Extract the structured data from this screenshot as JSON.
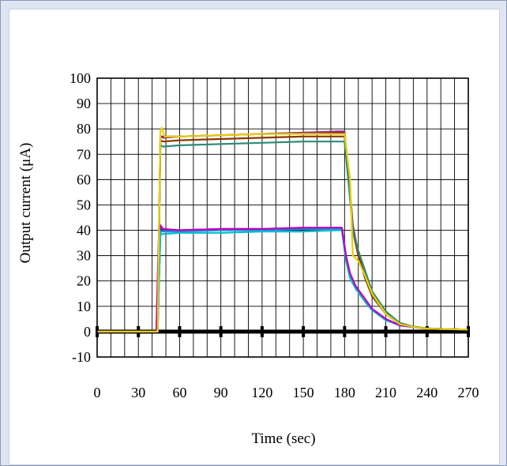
{
  "chart_data": {
    "type": "line",
    "xlabel": "Time (sec)",
    "ylabel": "Output current (μA)",
    "xlim": [
      0,
      270
    ],
    "ylim": [
      -10,
      100
    ],
    "x_ticks": [
      "0",
      "30",
      "60",
      "90",
      "120",
      "150",
      "180",
      "210",
      "240",
      "270"
    ],
    "y_ticks": [
      "-10",
      "0",
      "10",
      "20",
      "30",
      "40",
      "50",
      "60",
      "70",
      "80",
      "90",
      "100"
    ],
    "grid": true,
    "legend": "none",
    "series": [
      {
        "color": "#6b0f2a",
        "x": [
          0,
          40,
          44,
          46,
          48,
          60,
          90,
          120,
          150,
          175,
          180,
          183,
          186,
          190,
          195,
          200,
          210,
          220,
          230,
          240,
          255,
          270
        ],
        "y": [
          0,
          0,
          0,
          77,
          77,
          77,
          77.5,
          78,
          78.5,
          78.5,
          78.5,
          60,
          40,
          30,
          22,
          15,
          7,
          3,
          1.8,
          1.2,
          1,
          0.8
        ]
      },
      {
        "color": "#9b2d7a",
        "x": [
          0,
          40,
          44,
          46,
          48,
          60,
          90,
          120,
          150,
          175,
          180,
          183,
          186,
          190,
          195,
          200,
          210,
          220,
          230,
          240,
          255,
          270
        ],
        "y": [
          0,
          0,
          0,
          77,
          76.5,
          77,
          77.5,
          78,
          78.5,
          79,
          79,
          62,
          42,
          31,
          22,
          15,
          7,
          3,
          1.8,
          1.2,
          1,
          0.8
        ]
      },
      {
        "color": "#8b3a00",
        "x": [
          0,
          40,
          44,
          46,
          48,
          60,
          90,
          120,
          150,
          175,
          180,
          183,
          186,
          190,
          195,
          200,
          210,
          220,
          230,
          240,
          255,
          270
        ],
        "y": [
          0,
          0,
          0,
          75.5,
          75,
          75.5,
          76,
          76.5,
          77,
          77,
          77,
          60,
          40,
          30,
          21,
          14,
          7,
          3,
          1.8,
          1.2,
          1,
          0.8
        ]
      },
      {
        "color": "#2e8b7a",
        "x": [
          0,
          40,
          44,
          46,
          48,
          60,
          90,
          120,
          150,
          175,
          180,
          183,
          186,
          190,
          195,
          200,
          210,
          220,
          230,
          240,
          255,
          270
        ],
        "y": [
          0,
          0,
          0,
          73.5,
          73,
          73.5,
          74,
          74.5,
          75,
          75,
          75,
          58,
          40,
          32,
          24,
          16,
          8,
          3.5,
          2,
          1.3,
          1,
          0.8
        ]
      },
      {
        "color": "#4040c0",
        "x": [
          0,
          40,
          44,
          46,
          48,
          60,
          90,
          120,
          150,
          175,
          178,
          181,
          184,
          188,
          192,
          196,
          200,
          210,
          220,
          230,
          240,
          255,
          270
        ],
        "y": [
          0,
          0,
          0,
          41,
          40,
          40,
          40.5,
          40.5,
          41,
          41,
          41,
          30,
          22,
          18,
          15,
          12,
          9,
          5,
          2.5,
          1.8,
          1.2,
          1,
          0.8
        ]
      },
      {
        "color": "#1e90d0",
        "x": [
          0,
          40,
          44,
          46,
          48,
          60,
          90,
          120,
          150,
          175,
          178,
          181,
          184,
          188,
          192,
          196,
          200,
          210,
          220,
          230,
          240,
          255,
          270
        ],
        "y": [
          0,
          0,
          0,
          39.5,
          39.5,
          39.5,
          40,
          40,
          40.5,
          40.5,
          40.5,
          29,
          22,
          18,
          15,
          12,
          9,
          5,
          2.5,
          1.8,
          1.2,
          1,
          0.8
        ]
      },
      {
        "color": "#00bcd4",
        "x": [
          0,
          40,
          44,
          46,
          48,
          60,
          90,
          120,
          150,
          175,
          178,
          181,
          184,
          188,
          192,
          196,
          200,
          210,
          220,
          230,
          240,
          255,
          270
        ],
        "y": [
          0,
          0,
          0,
          38.5,
          38.5,
          39,
          39,
          39.5,
          39.5,
          40,
          40,
          28,
          21,
          17,
          14,
          11,
          8.5,
          4.5,
          2.5,
          1.8,
          1.2,
          1,
          0.8
        ]
      },
      {
        "color": "#c000c0",
        "x": [
          0,
          40,
          42,
          43,
          45,
          46,
          48,
          60,
          90,
          120,
          150,
          175,
          178,
          181,
          184,
          188,
          192,
          196,
          200,
          210,
          220,
          230,
          240,
          255,
          270
        ],
        "y": [
          0,
          0,
          0,
          0,
          40,
          42,
          40.5,
          40,
          40.5,
          40.5,
          41,
          41,
          41,
          30,
          23,
          18,
          15,
          12,
          9,
          5,
          2.5,
          1.8,
          1.2,
          1,
          0.8
        ]
      },
      {
        "color": "#e8d000",
        "x": [
          0,
          40,
          44,
          46,
          47,
          49,
          60,
          90,
          120,
          150,
          175,
          180,
          184,
          186,
          190,
          195,
          200,
          210,
          220,
          230,
          240,
          255,
          270
        ],
        "y": [
          0,
          0,
          0,
          79,
          80.5,
          77,
          77,
          77.5,
          78,
          78,
          78,
          78,
          60,
          30,
          28,
          22,
          15,
          7,
          3,
          1.8,
          1.2,
          1,
          0.8
        ]
      }
    ]
  }
}
